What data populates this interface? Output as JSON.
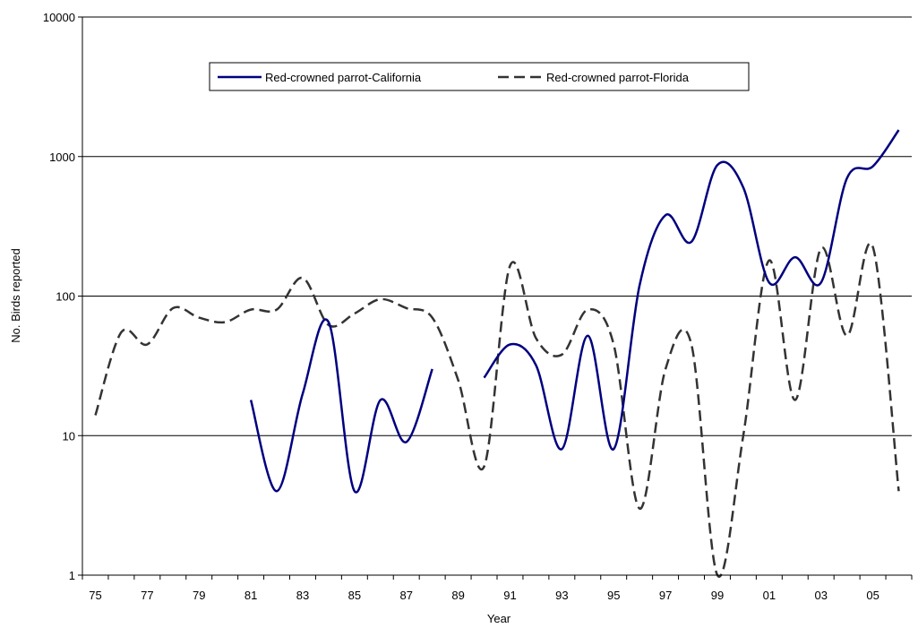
{
  "chart_data": {
    "type": "line",
    "xlabel": "Year",
    "ylabel": "No. Birds reported",
    "yscale": "log",
    "ylim": [
      1,
      10000
    ],
    "y_ticks": [
      "1",
      "10",
      "100",
      "1000",
      "10000"
    ],
    "x_categories": [
      "75",
      "76",
      "77",
      "78",
      "79",
      "80",
      "81",
      "82",
      "83",
      "84",
      "85",
      "86",
      "87",
      "88",
      "89",
      "90",
      "91",
      "92",
      "93",
      "94",
      "95",
      "96",
      "97",
      "98",
      "99",
      "00",
      "01",
      "02",
      "03",
      "04",
      "05",
      "06"
    ],
    "x_tick_labels": [
      "75",
      "77",
      "79",
      "81",
      "83",
      "85",
      "87",
      "89",
      "91",
      "93",
      "95",
      "97",
      "99",
      "01",
      "03",
      "05"
    ],
    "grid": true,
    "legend_position": "top",
    "series": [
      {
        "name": "Red-crowned parrot-California",
        "color": "#000080",
        "style": "solid",
        "values": [
          null,
          null,
          null,
          null,
          null,
          null,
          18,
          4,
          20,
          65,
          4,
          18,
          9,
          30,
          null,
          26,
          45,
          32,
          8,
          52,
          8,
          120,
          380,
          245,
          870,
          600,
          125,
          190,
          125,
          700,
          850,
          1550
        ]
      },
      {
        "name": "Red-crowned parrot-Florida",
        "color": "#333333",
        "style": "dashed",
        "values": [
          14,
          55,
          45,
          82,
          70,
          65,
          80,
          80,
          135,
          62,
          75,
          95,
          82,
          70,
          25,
          6,
          165,
          50,
          38,
          80,
          45,
          3,
          30,
          45,
          1,
          10,
          180,
          18,
          220,
          52,
          225,
          4
        ]
      }
    ]
  }
}
